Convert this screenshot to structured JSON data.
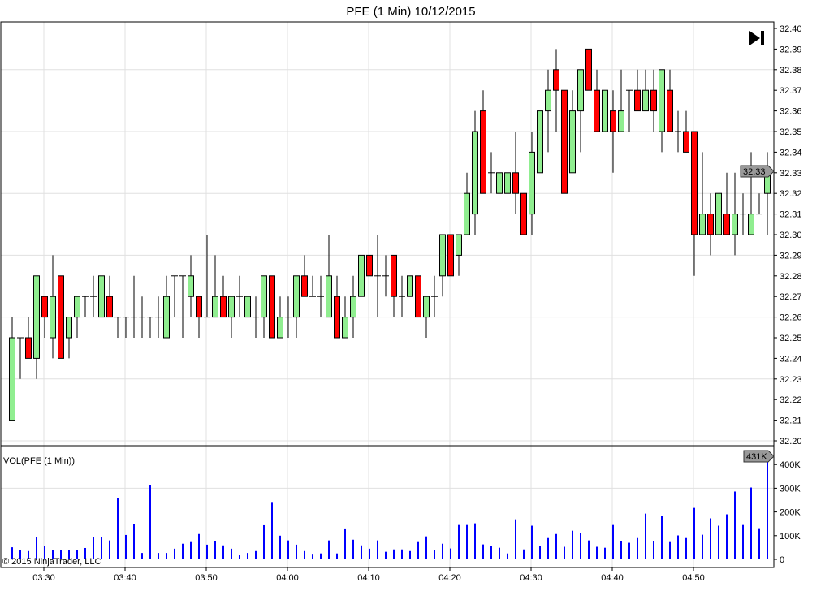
{
  "title": "PFE (1 Min)  10/12/2015",
  "volume_label": "VOL(PFE (1 Min))",
  "copyright": "© 2015 NinjaTrader, LLC",
  "last_price_label": "32.33",
  "last_volume_label": "431K",
  "icon": "skip-to-end-icon",
  "colors": {
    "up": "#90EE90",
    "down": "#FF0000",
    "volume": "#0000FF",
    "grid": "#E0E0E0"
  },
  "chart_data": [
    {
      "type": "candlestick",
      "title": "PFE (1 Min)  10/12/2015",
      "start_time": "03:26",
      "interval_minutes": 1,
      "price_ticks": [
        "32.40",
        "32.39",
        "32.38",
        "32.37",
        "32.36",
        "32.35",
        "32.34",
        "32.33",
        "32.32",
        "32.31",
        "32.30",
        "32.29",
        "32.28",
        "32.27",
        "32.26",
        "32.25",
        "32.24",
        "32.23",
        "32.22",
        "32.21",
        "32.20"
      ],
      "ylim": [
        32.2,
        32.4
      ],
      "time_ticks": [
        "03:30",
        "03:40",
        "03:50",
        "04:00",
        "04:10",
        "04:20",
        "04:30",
        "04:40",
        "04:50"
      ],
      "grid": true,
      "ohlc": [
        [
          32.21,
          32.26,
          32.21,
          32.25
        ],
        [
          32.25,
          32.25,
          32.23,
          32.25
        ],
        [
          32.25,
          32.26,
          32.24,
          32.24
        ],
        [
          32.24,
          32.28,
          32.23,
          32.28
        ],
        [
          32.27,
          32.27,
          32.25,
          32.26
        ],
        [
          32.25,
          32.29,
          32.24,
          32.27
        ],
        [
          32.28,
          32.28,
          32.24,
          32.24
        ],
        [
          32.25,
          32.26,
          32.24,
          32.26
        ],
        [
          32.26,
          32.27,
          32.25,
          32.27
        ],
        [
          32.27,
          32.27,
          32.26,
          32.27
        ],
        [
          32.27,
          32.28,
          32.26,
          32.27
        ],
        [
          32.26,
          32.28,
          32.26,
          32.28
        ],
        [
          32.27,
          32.28,
          32.26,
          32.26
        ],
        [
          32.26,
          32.26,
          32.25,
          32.26
        ],
        [
          32.26,
          32.26,
          32.25,
          32.26
        ],
        [
          32.26,
          32.28,
          32.25,
          32.26
        ],
        [
          32.26,
          32.27,
          32.25,
          32.26
        ],
        [
          32.26,
          32.26,
          32.25,
          32.26
        ],
        [
          32.26,
          32.27,
          32.25,
          32.26
        ],
        [
          32.25,
          32.28,
          32.25,
          32.27
        ],
        [
          32.28,
          32.28,
          32.26,
          32.28
        ],
        [
          32.28,
          32.28,
          32.25,
          32.28
        ],
        [
          32.27,
          32.29,
          32.26,
          32.28
        ],
        [
          32.27,
          32.27,
          32.25,
          32.26
        ],
        [
          32.26,
          32.3,
          32.26,
          32.26
        ],
        [
          32.26,
          32.29,
          32.26,
          32.27
        ],
        [
          32.27,
          32.28,
          32.26,
          32.26
        ],
        [
          32.26,
          32.27,
          32.25,
          32.27
        ],
        [
          32.27,
          32.28,
          32.26,
          32.27
        ],
        [
          32.26,
          32.27,
          32.26,
          32.27
        ],
        [
          32.26,
          32.27,
          32.25,
          32.26
        ],
        [
          32.26,
          32.28,
          32.25,
          32.28
        ],
        [
          32.28,
          32.28,
          32.25,
          32.25
        ],
        [
          32.25,
          32.27,
          32.25,
          32.26
        ],
        [
          32.26,
          32.27,
          32.25,
          32.26
        ],
        [
          32.26,
          32.28,
          32.25,
          32.28
        ],
        [
          32.28,
          32.29,
          32.27,
          32.27
        ],
        [
          32.27,
          32.28,
          32.27,
          32.27
        ],
        [
          32.27,
          32.28,
          32.26,
          32.27
        ],
        [
          32.26,
          32.3,
          32.26,
          32.28
        ],
        [
          32.27,
          32.28,
          32.25,
          32.25
        ],
        [
          32.25,
          32.27,
          32.25,
          32.26
        ],
        [
          32.26,
          32.28,
          32.25,
          32.27
        ],
        [
          32.27,
          32.29,
          32.27,
          32.29
        ],
        [
          32.29,
          32.29,
          32.28,
          32.28
        ],
        [
          32.28,
          32.3,
          32.26,
          32.28
        ],
        [
          32.28,
          32.29,
          32.27,
          32.28
        ],
        [
          32.29,
          32.29,
          32.26,
          32.27
        ],
        [
          32.27,
          32.28,
          32.26,
          32.27
        ],
        [
          32.27,
          32.28,
          32.27,
          32.28
        ],
        [
          32.28,
          32.28,
          32.26,
          32.26
        ],
        [
          32.26,
          32.27,
          32.25,
          32.27
        ],
        [
          32.27,
          32.28,
          32.26,
          32.27
        ],
        [
          32.28,
          32.3,
          32.27,
          32.3
        ],
        [
          32.3,
          32.3,
          32.28,
          32.28
        ],
        [
          32.29,
          32.3,
          32.28,
          32.3
        ],
        [
          32.3,
          32.33,
          32.3,
          32.32
        ],
        [
          32.31,
          32.36,
          32.3,
          32.35
        ],
        [
          32.36,
          32.37,
          32.32,
          32.32
        ],
        [
          32.33,
          32.34,
          32.32,
          32.33
        ],
        [
          32.32,
          32.33,
          32.32,
          32.33
        ],
        [
          32.32,
          32.33,
          32.32,
          32.33
        ],
        [
          32.33,
          32.35,
          32.31,
          32.32
        ],
        [
          32.32,
          32.32,
          32.3,
          32.3
        ],
        [
          32.31,
          32.35,
          32.3,
          32.34
        ],
        [
          32.33,
          32.36,
          32.33,
          32.36
        ],
        [
          32.36,
          32.38,
          32.34,
          32.37
        ],
        [
          32.38,
          32.39,
          32.35,
          32.37
        ],
        [
          32.37,
          32.37,
          32.32,
          32.32
        ],
        [
          32.33,
          32.37,
          32.33,
          32.36
        ],
        [
          32.36,
          32.38,
          32.34,
          32.38
        ],
        [
          32.39,
          32.39,
          32.37,
          32.37
        ],
        [
          32.37,
          32.38,
          32.35,
          32.35
        ],
        [
          32.35,
          32.37,
          32.35,
          32.37
        ],
        [
          32.36,
          32.37,
          32.33,
          32.35
        ],
        [
          32.35,
          32.38,
          32.35,
          32.36
        ],
        [
          32.37,
          32.37,
          32.35,
          32.37
        ],
        [
          32.37,
          32.38,
          32.36,
          32.36
        ],
        [
          32.36,
          32.38,
          32.36,
          32.37
        ],
        [
          32.37,
          32.38,
          32.35,
          32.36
        ],
        [
          32.35,
          32.38,
          32.34,
          32.38
        ],
        [
          32.37,
          32.38,
          32.35,
          32.35
        ],
        [
          32.35,
          32.36,
          32.34,
          32.35
        ],
        [
          32.35,
          32.36,
          32.34,
          32.34
        ],
        [
          32.35,
          32.35,
          32.28,
          32.3
        ],
        [
          32.3,
          32.34,
          32.3,
          32.31
        ],
        [
          32.31,
          32.32,
          32.29,
          32.3
        ],
        [
          32.3,
          32.32,
          32.3,
          32.32
        ],
        [
          32.31,
          32.33,
          32.3,
          32.3
        ],
        [
          32.3,
          32.33,
          32.29,
          32.31
        ],
        [
          32.31,
          32.32,
          32.3,
          32.31
        ],
        [
          32.3,
          32.34,
          32.3,
          32.31
        ],
        [
          32.31,
          32.32,
          32.31,
          32.31
        ],
        [
          32.32,
          32.34,
          32.3,
          32.33
        ]
      ]
    },
    {
      "type": "bar",
      "title": "VOL(PFE (1 Min))",
      "unit": "K",
      "volume_ticks": [
        "400K",
        "300K",
        "200K",
        "100K",
        "0"
      ],
      "ylim": [
        0,
        450
      ],
      "values": [
        51,
        38,
        35,
        95,
        57,
        41,
        40,
        41,
        38,
        48,
        95,
        93,
        80,
        260,
        103,
        150,
        27,
        313,
        27,
        27,
        45,
        66,
        73,
        107,
        62,
        76,
        59,
        45,
        17,
        27,
        35,
        144,
        242,
        100,
        80,
        62,
        35,
        20,
        25,
        80,
        25,
        127,
        83,
        59,
        45,
        80,
        32,
        42,
        42,
        35,
        73,
        97,
        39,
        66,
        46,
        145,
        145,
        152,
        63,
        56,
        49,
        25,
        169,
        42,
        142,
        56,
        90,
        107,
        53,
        121,
        111,
        80,
        53,
        49,
        145,
        77,
        70,
        90,
        193,
        77,
        183,
        73,
        101,
        90,
        217,
        104,
        173,
        142,
        190,
        286,
        145,
        303,
        128,
        431
      ]
    }
  ]
}
